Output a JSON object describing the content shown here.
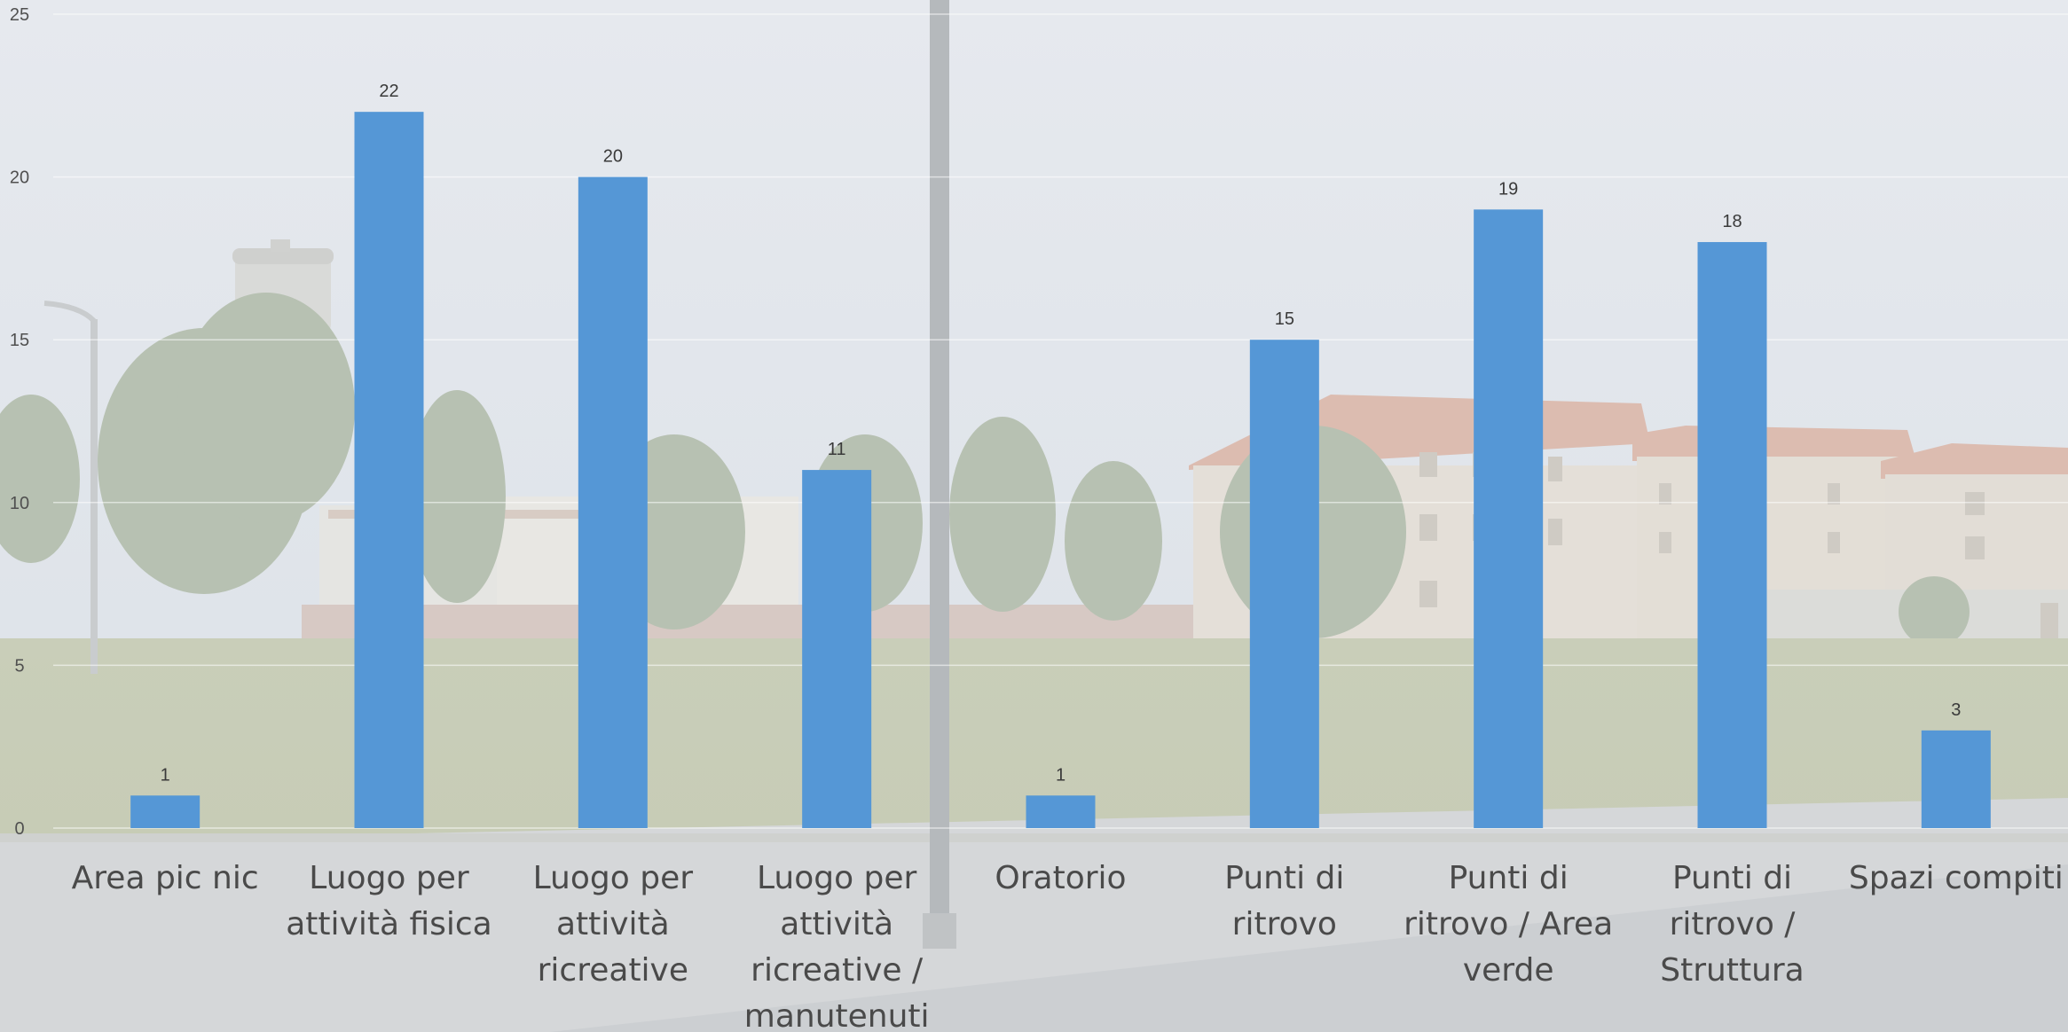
{
  "chart_data": {
    "type": "bar",
    "categories": [
      "Area pic nic",
      "Luogo per attività fisica",
      "Luogo per attività ricreative",
      "Luogo per attività ricreative / manutenuti",
      "Oratorio",
      "Punti di ritrovo",
      "Punti di ritrovo / Area verde",
      "Punti di ritrovo / Struttura",
      "Spazi compiti"
    ],
    "category_lines": [
      [
        "Area pic nic"
      ],
      [
        "Luogo per",
        "attività fisica"
      ],
      [
        "Luogo per",
        "attività",
        "ricreative"
      ],
      [
        "Luogo per",
        "attività",
        "ricreative /",
        "manutenuti"
      ],
      [
        "Oratorio"
      ],
      [
        "Punti di",
        "ritrovo"
      ],
      [
        "Punti di",
        "ritrovo / Area",
        "verde"
      ],
      [
        "Punti di",
        "ritrovo /",
        "Struttura"
      ],
      [
        "Spazi compiti"
      ]
    ],
    "values": [
      1,
      22,
      20,
      11,
      1,
      15,
      19,
      18,
      3
    ],
    "yticks": [
      0,
      5,
      10,
      15,
      20,
      25
    ],
    "ylim": [
      0,
      25
    ],
    "title": "",
    "xlabel": "",
    "ylabel": "",
    "grid": true,
    "legend": "none",
    "bar_color": "#5597d6",
    "background": "photo"
  }
}
